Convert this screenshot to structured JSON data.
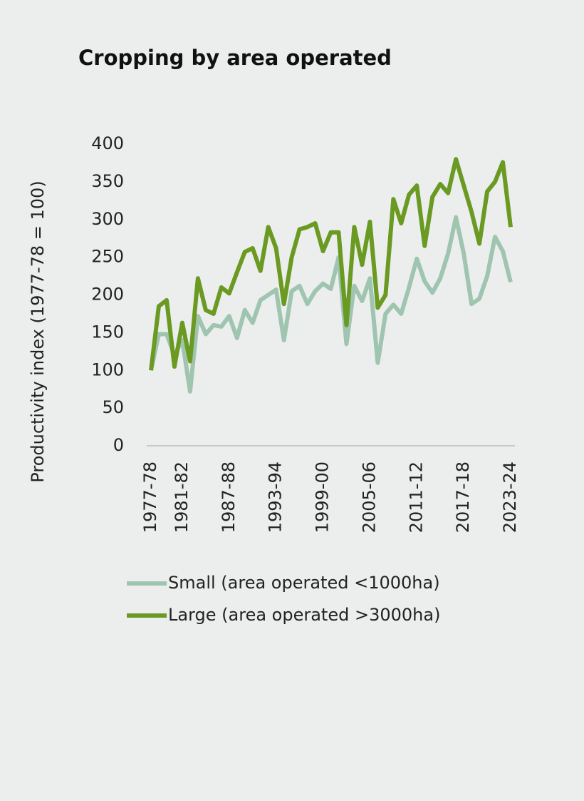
{
  "chart_data": {
    "type": "line",
    "title": "Cropping by area operated",
    "y_label": "Productivity index (1977-78 = 100)",
    "categories": [
      "1977-78",
      null,
      null,
      null,
      "1981-82",
      null,
      null,
      null,
      null,
      null,
      "1987-88",
      null,
      null,
      null,
      null,
      null,
      "1993-94",
      null,
      null,
      null,
      null,
      null,
      "1999-00",
      null,
      null,
      null,
      null,
      null,
      "2005-06",
      null,
      null,
      null,
      null,
      null,
      "2011-12",
      null,
      null,
      null,
      null,
      null,
      "2017-18",
      null,
      null,
      null,
      null,
      null,
      "2023-24"
    ],
    "series": [
      {
        "name": "Small (area operated <1000ha)",
        "color": "#9fc5b0",
        "values": [
          100,
          148,
          148,
          120,
          140,
          72,
          172,
          148,
          160,
          158,
          172,
          143,
          180,
          163,
          193,
          200,
          207,
          140,
          205,
          212,
          188,
          205,
          215,
          208,
          250,
          135,
          212,
          192,
          222,
          110,
          175,
          187,
          175,
          210,
          248,
          218,
          203,
          222,
          255,
          303,
          255,
          188,
          195,
          225,
          277,
          258,
          217
        ]
      },
      {
        "name": "Large (area operated >3000ha)",
        "color": "#6a9a22",
        "values": [
          100,
          185,
          193,
          105,
          163,
          112,
          222,
          180,
          175,
          210,
          202,
          230,
          257,
          262,
          232,
          290,
          262,
          188,
          250,
          287,
          290,
          295,
          258,
          283,
          283,
          160,
          290,
          240,
          297,
          183,
          200,
          327,
          295,
          333,
          345,
          265,
          330,
          347,
          335,
          380,
          345,
          310,
          268,
          337,
          350,
          376,
          290
        ]
      }
    ],
    "ylim": [
      0,
      400
    ],
    "yticks": [
      0,
      50,
      100,
      150,
      200,
      250,
      300,
      350,
      400
    ]
  }
}
